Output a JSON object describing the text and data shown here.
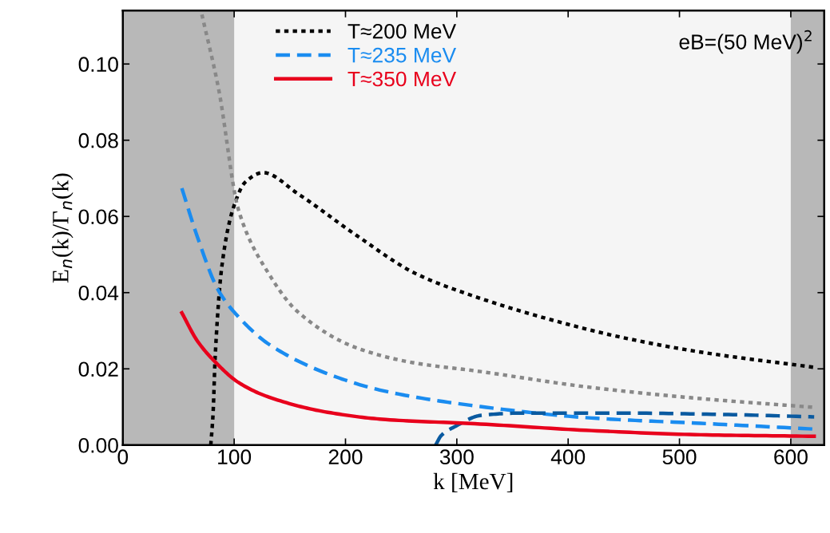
{
  "chart_data": {
    "type": "line",
    "xlabel": "k [MeV]",
    "ylabel": "E$_{n}$(k)/Γ$_{n}$(k)",
    "xlim": [
      0,
      630
    ],
    "ylim": [
      0,
      0.114
    ],
    "xticks": [
      0,
      100,
      200,
      300,
      400,
      500,
      600
    ],
    "yticks": [
      {
        "value": 0,
        "label": "0.00"
      },
      {
        "value": 0.02,
        "label": "0.02"
      },
      {
        "value": 0.04,
        "label": "0.04"
      },
      {
        "value": 0.06,
        "label": "0.06"
      },
      {
        "value": 0.08,
        "label": "0.08"
      },
      {
        "value": 0.1,
        "label": "0.10"
      }
    ],
    "grid": false,
    "legend": "top",
    "marker": "none",
    "annotations": [
      "eB=(50 MeV)$^{2}$"
    ],
    "bands": [
      {
        "axis": "x",
        "from": 0,
        "to": 100,
        "color": "#b8b8b8"
      },
      {
        "axis": "x",
        "from": 600,
        "to": 630,
        "color": "#b8b8b8"
      }
    ],
    "series": [
      {
        "name": "T≈200 MeV",
        "color": "#000000",
        "line_style": "dotted",
        "x": [
          79,
          81,
          83,
          89,
          99,
          110,
          126,
          157,
          210,
          263,
          316,
          371,
          446,
          519,
          621
        ],
        "values": [
          0,
          0.008,
          0.0235,
          0.047,
          0.062,
          0.069,
          0.0715,
          0.066,
          0.055,
          0.045,
          0.039,
          0.034,
          0.0284,
          0.0244,
          0.0204
        ]
      },
      {
        "color": "#888888",
        "line_style": "dotted",
        "x": [
          71,
          86,
          104,
          131,
          157,
          210,
          263,
          316,
          421,
          519,
          621
        ],
        "values": [
          0.113,
          0.0935,
          0.0616,
          0.045,
          0.035,
          0.0255,
          0.0215,
          0.0195,
          0.0151,
          0.0122,
          0.0099
        ]
      },
      {
        "name": "T≈235 MeV",
        "color": "#1a8cf0",
        "line_style": "dashed",
        "x": [
          53,
          67,
          86,
          104,
          131,
          184,
          236,
          316,
          421,
          519,
          621
        ],
        "values": [
          0.0674,
          0.0546,
          0.0405,
          0.0336,
          0.0265,
          0.0187,
          0.0141,
          0.0103,
          0.0071,
          0.0057,
          0.0042
        ]
      },
      {
        "color": "#0a5aa0",
        "line_style": "dashed",
        "x": [
          281,
          286,
          298,
          322,
          359,
          446,
          544,
          621
        ],
        "values": [
          0,
          0.0025,
          0.0048,
          0.0078,
          0.0084,
          0.0084,
          0.008,
          0.0074
        ]
      },
      {
        "name": "T≈350 MeV",
        "color": "#e8001c",
        "line_style": "solid",
        "x": [
          53,
          67,
          83,
          104,
          131,
          184,
          236,
          316,
          421,
          519,
          621
        ],
        "values": [
          0.0347,
          0.0273,
          0.0218,
          0.0164,
          0.0126,
          0.0086,
          0.0067,
          0.0056,
          0.0038,
          0.0027,
          0.0023
        ]
      }
    ]
  }
}
